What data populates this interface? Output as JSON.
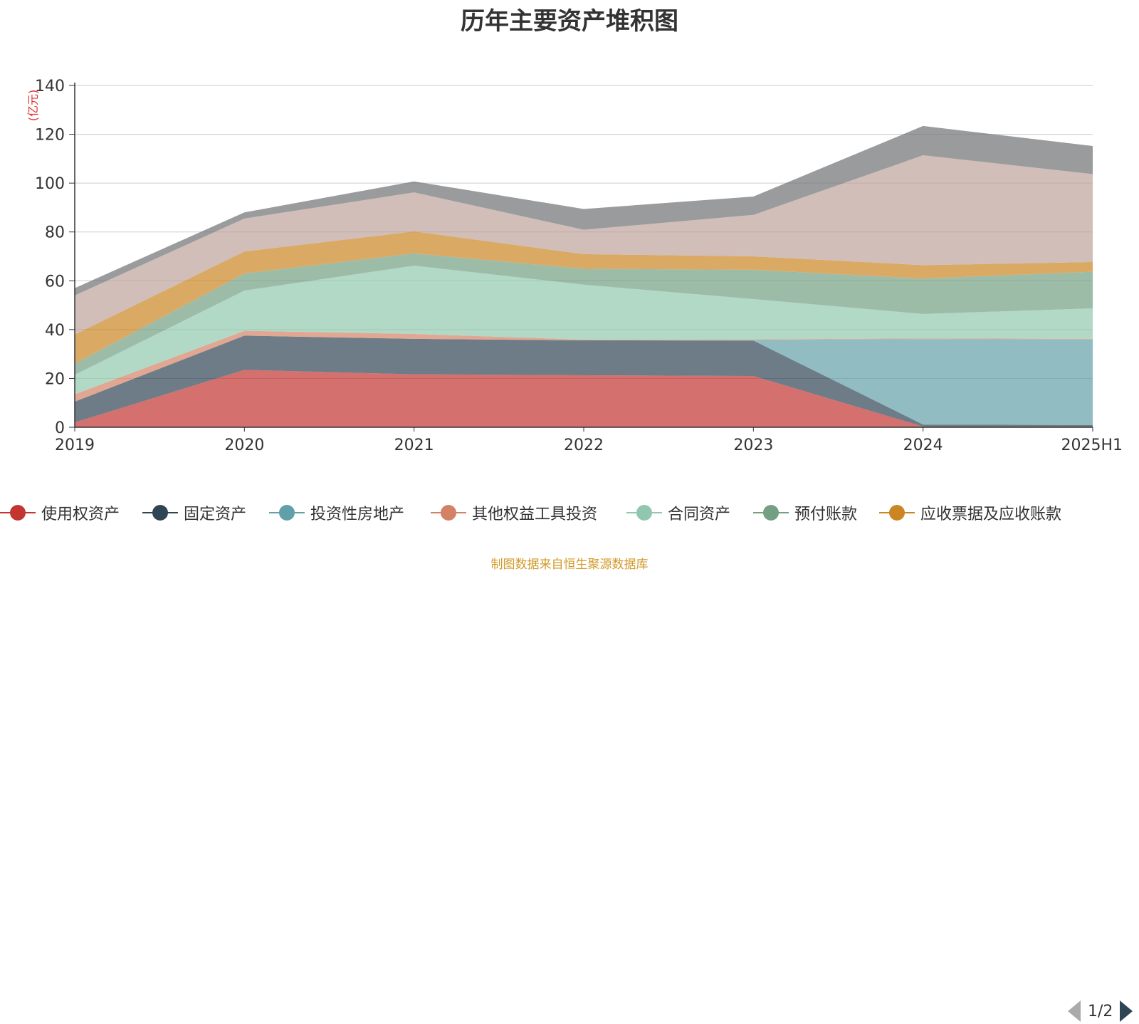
{
  "title": "历年主要资产堆积图",
  "source_note": "制图数据来自恒生聚源数据库",
  "legend_pager": "1/2",
  "chart_data": {
    "type": "area",
    "stacked": true,
    "title": "历年主要资产堆积图",
    "ylabel": "(亿元)",
    "xlabel": "",
    "ylim": [
      0,
      140
    ],
    "yticks": [
      0,
      20,
      40,
      60,
      80,
      100,
      120,
      140
    ],
    "grid": true,
    "legend_position": "bottom",
    "categories": [
      "2019",
      "2020",
      "2021",
      "2022",
      "2023",
      "2024",
      "2025H1"
    ],
    "series": [
      {
        "name": "使用权资产",
        "color": "#c23531",
        "values": [
          2,
          23.5,
          21.7,
          21.3,
          21,
          0.3,
          0.3
        ]
      },
      {
        "name": "固定资产",
        "color": "#2f4554",
        "values": [
          8.5,
          14,
          14.5,
          14.3,
          14.5,
          0.8,
          0.6
        ]
      },
      {
        "name": "投资性房地产",
        "color": "#61a0a8",
        "values": [
          0,
          0,
          0,
          0,
          0.2,
          35,
          35
        ]
      },
      {
        "name": "其他权益工具投资",
        "color": "#d48265",
        "values": [
          3,
          2,
          2,
          0.3,
          0.3,
          0.3,
          0.3
        ]
      },
      {
        "name": "合同资产",
        "color": "#91c7ae",
        "values": [
          8,
          16.5,
          28,
          22.5,
          16.5,
          10,
          12.5
        ]
      },
      {
        "name": "预付账款",
        "color": "#749f83",
        "values": [
          4.5,
          7,
          5,
          6.5,
          12,
          14.5,
          15
        ]
      },
      {
        "name": "应收票据及应收账款",
        "color": "#ca8622",
        "values": [
          12,
          9,
          9,
          6,
          5.5,
          5.5,
          4
        ]
      },
      {
        "name": "",
        "color": "#bda29a",
        "values": [
          16,
          13.5,
          16,
          10,
          17,
          45,
          36
        ]
      },
      {
        "name": "",
        "color": "#6e7074",
        "values": [
          3,
          2.5,
          4.5,
          8.5,
          7.5,
          12,
          11.5
        ]
      }
    ]
  }
}
